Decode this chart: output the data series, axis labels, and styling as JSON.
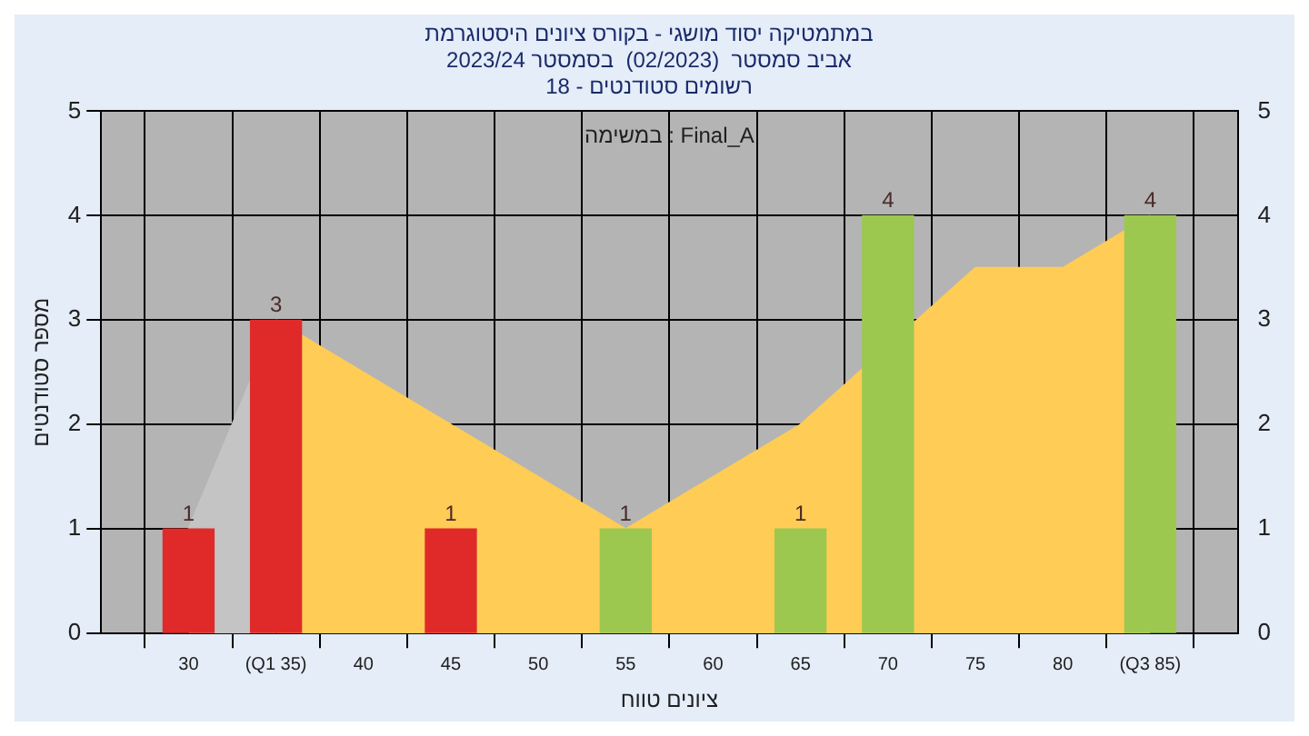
{
  "chart_data": {
    "type": "bar",
    "title": "במתמטיקה יסוד מושגי - בקורס ציונים היסטוגרמת",
    "subtitle": "2023/24 אביב סמסטר  (02/2023)  בסמסטר\n18 - רשומים סטודנטים",
    "xlabel": "ציונים טווח",
    "ylabel": "מספר סטודנטים",
    "annotations": [
      "Final_A : במשימה"
    ],
    "x": [
      30,
      35,
      45,
      55,
      65,
      70,
      85
    ],
    "series": [
      {
        "type": "area",
        "color": "#c4c4c4",
        "x": [
          30,
          35
        ],
        "values": [
          1,
          3
        ]
      },
      {
        "type": "area",
        "color": "#ffcc55",
        "x": [
          35,
          40,
          45,
          50,
          55,
          60,
          65,
          70,
          75,
          80,
          85
        ],
        "values": [
          3,
          2.5,
          2,
          1.5,
          1,
          1.5,
          2,
          null,
          3.5,
          3.5,
          4
        ]
      },
      {
        "colors": [
          "#e02a2a",
          "#e02a2a",
          "#e02a2a",
          "#9cc850",
          "#9cc850",
          "#9cc850",
          "#9cc850"
        ],
        "values": [
          1,
          3,
          1,
          1,
          1,
          4,
          4
        ],
        "value_labels": [
          "1",
          "3",
          "1",
          "1",
          "1",
          "4",
          "4"
        ]
      }
    ],
    "xlim": [
      25,
      90
    ],
    "xticks": [
      30,
      {
        "value": 35,
        "label": "(Q1 35)"
      },
      40,
      45,
      50,
      55,
      60,
      65,
      70,
      75,
      80,
      {
        "value": 85,
        "label": "(Q3 85)"
      }
    ],
    "ylim": [
      0,
      5
    ],
    "yticks": [
      0,
      1,
      2,
      3,
      4,
      5
    ],
    "y2lim": [
      0,
      5
    ],
    "y2ticks": [
      0,
      1,
      2,
      3,
      4,
      5
    ],
    "grid": true,
    "legend": false
  }
}
